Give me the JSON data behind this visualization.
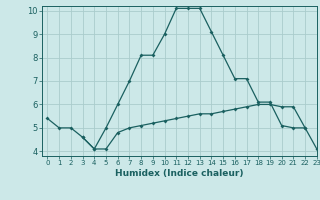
{
  "xlabel": "Humidex (Indice chaleur)",
  "xlim": [
    -0.5,
    23
  ],
  "ylim": [
    3.8,
    10.2
  ],
  "yticks": [
    4,
    5,
    6,
    7,
    8,
    9,
    10
  ],
  "xticks": [
    0,
    1,
    2,
    3,
    4,
    5,
    6,
    7,
    8,
    9,
    10,
    11,
    12,
    13,
    14,
    15,
    16,
    17,
    18,
    19,
    20,
    21,
    22,
    23
  ],
  "background_color": "#cce8e8",
  "grid_color": "#aacccc",
  "line_color": "#1a6060",
  "line1_x": [
    0,
    1,
    2,
    3,
    4,
    5,
    6,
    7,
    8,
    9,
    10,
    11,
    12,
    13,
    14,
    15,
    16,
    17,
    18,
    19,
    20,
    21,
    22
  ],
  "line1_y": [
    5.4,
    5.0,
    5.0,
    4.6,
    4.1,
    5.0,
    6.0,
    7.0,
    8.1,
    8.1,
    9.0,
    10.1,
    10.1,
    10.1,
    9.1,
    8.1,
    7.1,
    7.1,
    6.1,
    6.1,
    5.1,
    5.0,
    5.0
  ],
  "line2_x": [
    3,
    4,
    5,
    6,
    7,
    8,
    9,
    10,
    11,
    12,
    13,
    14,
    15,
    16,
    17,
    18,
    19,
    20,
    21,
    22,
    23
  ],
  "line2_y": [
    4.6,
    4.1,
    4.1,
    4.8,
    5.0,
    5.1,
    5.2,
    5.3,
    5.4,
    5.5,
    5.6,
    5.6,
    5.7,
    5.8,
    5.9,
    6.0,
    6.0,
    5.9,
    5.9,
    5.0,
    4.1
  ]
}
